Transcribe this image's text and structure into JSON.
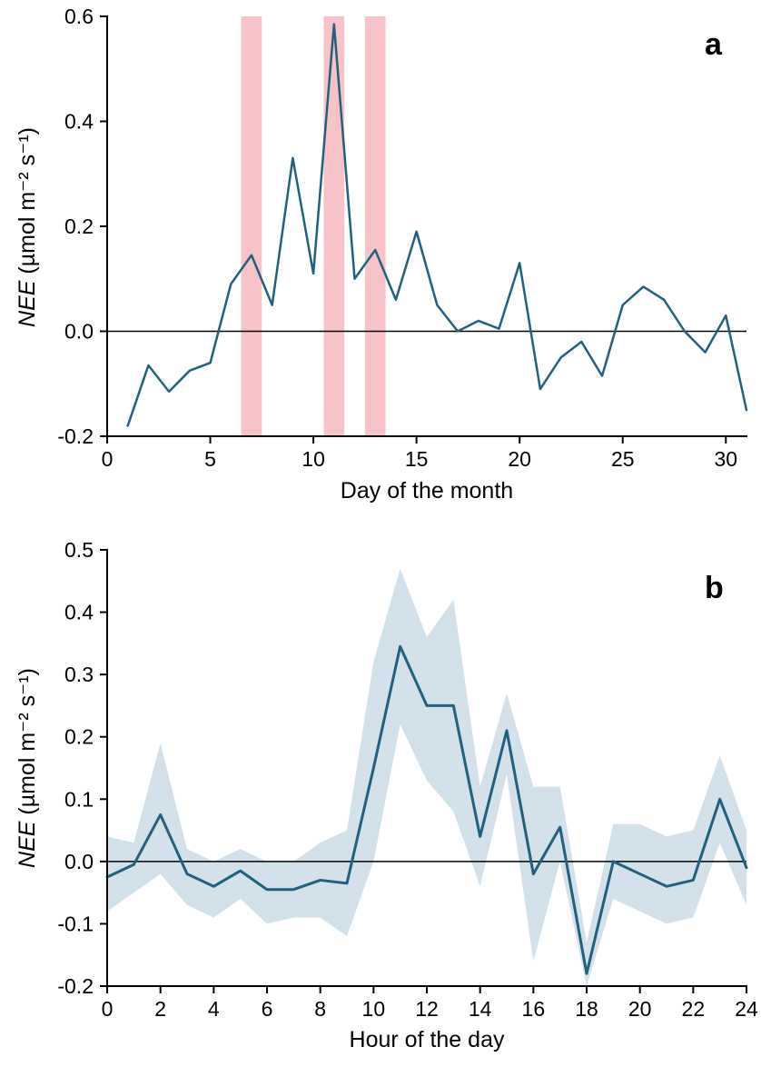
{
  "figure": {
    "background": "#ffffff",
    "line_color": "#20617f",
    "axis_color": "#000000"
  },
  "chart_data": [
    {
      "id": "panel-a",
      "type": "line",
      "panel_label": "a",
      "xlabel": "Day of the month",
      "ylabel_italic": "NEE",
      "ylabel_rest": " (µmol m⁻² s⁻¹)",
      "xlim": [
        0,
        31
      ],
      "ylim": [
        -0.2,
        0.6
      ],
      "xticks": [
        0,
        5,
        10,
        15,
        20,
        25,
        30
      ],
      "xtick_labels": [
        "0",
        "5",
        "10",
        "15",
        "20",
        "25",
        "30"
      ],
      "yticks": [
        -0.2,
        0.0,
        0.2,
        0.4,
        0.6
      ],
      "ytick_labels": [
        "-0.2",
        "0.0",
        "0.2",
        "0.4",
        "0.6"
      ],
      "zero_line": true,
      "grid": false,
      "legend": "none",
      "band_color": "#f8c3c8",
      "highlight_bands": [
        [
          6.5,
          7.5
        ],
        [
          10.5,
          11.5
        ],
        [
          12.5,
          13.5
        ]
      ],
      "x": [
        1,
        2,
        3,
        4,
        5,
        6,
        7,
        8,
        9,
        10,
        11,
        12,
        13,
        14,
        15,
        16,
        17,
        18,
        19,
        20,
        21,
        22,
        23,
        24,
        25,
        26,
        27,
        28,
        29,
        30,
        31
      ],
      "y": [
        -0.18,
        -0.065,
        -0.115,
        -0.075,
        -0.06,
        0.09,
        0.145,
        0.05,
        0.33,
        0.11,
        0.585,
        0.1,
        0.155,
        0.06,
        0.19,
        0.05,
        0.0,
        0.02,
        0.005,
        0.13,
        -0.11,
        -0.05,
        -0.02,
        -0.085,
        0.05,
        0.085,
        0.06,
        0.0,
        -0.04,
        0.03,
        -0.15
      ]
    },
    {
      "id": "panel-b",
      "type": "line",
      "panel_label": "b",
      "xlabel": "Hour of the day",
      "ylabel_italic": "NEE",
      "ylabel_rest": " (µmol m⁻² s⁻¹)",
      "xlim": [
        0,
        24
      ],
      "ylim": [
        -0.2,
        0.5
      ],
      "xticks": [
        0,
        2,
        4,
        6,
        8,
        10,
        12,
        14,
        16,
        18,
        20,
        22,
        24
      ],
      "xtick_labels": [
        "0",
        "2",
        "4",
        "6",
        "8",
        "10",
        "12",
        "14",
        "16",
        "18",
        "20",
        "22",
        "24"
      ],
      "yticks": [
        -0.2,
        -0.1,
        0.0,
        0.1,
        0.2,
        0.3,
        0.4,
        0.5
      ],
      "ytick_labels": [
        "-0.2",
        "-0.1",
        "0.0",
        "0.1",
        "0.2",
        "0.3",
        "0.4",
        "0.5"
      ],
      "zero_line": true,
      "grid": false,
      "legend": "none",
      "band_color": "#d3e1ea",
      "x": [
        0,
        1,
        2,
        3,
        4,
        5,
        6,
        7,
        8,
        9,
        10,
        11,
        12,
        13,
        14,
        15,
        16,
        17,
        18,
        19,
        20,
        21,
        22,
        23,
        24
      ],
      "y": [
        -0.025,
        -0.005,
        0.075,
        -0.02,
        -0.04,
        -0.015,
        -0.045,
        -0.045,
        -0.03,
        -0.035,
        0.15,
        0.345,
        0.25,
        0.25,
        0.04,
        0.21,
        -0.02,
        0.055,
        -0.18,
        0.0,
        -0.02,
        -0.04,
        -0.03,
        0.1,
        -0.01
      ],
      "band_upper": [
        0.04,
        0.03,
        0.19,
        0.02,
        0.0,
        0.02,
        0.0,
        0.0,
        0.03,
        0.05,
        0.32,
        0.47,
        0.36,
        0.42,
        0.12,
        0.27,
        0.12,
        0.12,
        -0.13,
        0.06,
        0.06,
        0.04,
        0.05,
        0.17,
        0.05
      ],
      "band_lower": [
        -0.08,
        -0.05,
        -0.02,
        -0.07,
        -0.09,
        -0.06,
        -0.1,
        -0.09,
        -0.09,
        -0.12,
        0.0,
        0.22,
        0.13,
        0.08,
        -0.04,
        0.14,
        -0.16,
        0.0,
        -0.22,
        -0.06,
        -0.08,
        -0.1,
        -0.09,
        0.03,
        -0.07
      ]
    }
  ]
}
